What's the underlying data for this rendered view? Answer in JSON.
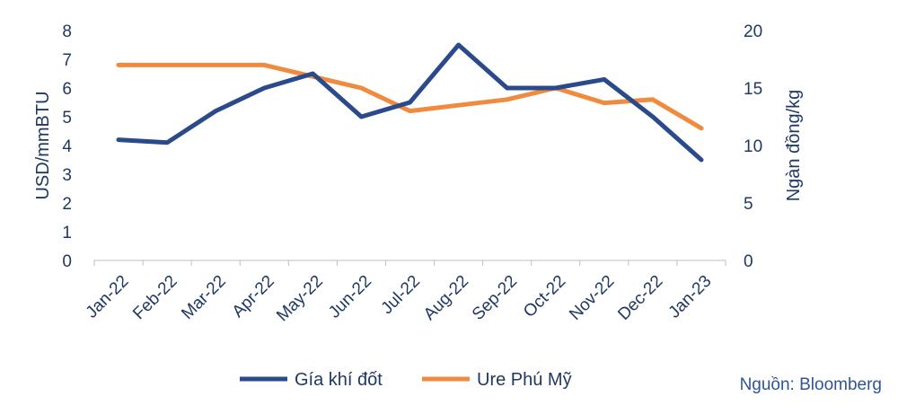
{
  "chart_data": {
    "type": "line",
    "categories": [
      "Jan-22",
      "Feb-22",
      "Mar-22",
      "Apr-22",
      "May-22",
      "Jun-22",
      "Jul-22",
      "Aug-22",
      "Sep-22",
      "Oct-22",
      "Nov-22",
      "Dec-22",
      "Jan-23"
    ],
    "series": [
      {
        "name": "Gía khí đốt",
        "axis": "left",
        "color": "#2a4a8c",
        "values": [
          4.2,
          4.1,
          5.2,
          6.0,
          6.5,
          5.0,
          5.5,
          7.5,
          6.0,
          6.0,
          6.3,
          5.0,
          3.5
        ]
      },
      {
        "name": "Ure Phú Mỹ",
        "axis": "right",
        "color": "#f08a3e",
        "values": [
          17,
          17,
          17,
          17,
          16,
          15,
          13,
          13.5,
          14,
          15,
          13.7,
          14,
          11.5
        ]
      }
    ],
    "ylabel": "USD/mmBTU",
    "ylabel_right": "Ngàn đồng/kg",
    "ylim": [
      0,
      8
    ],
    "ylim_right": [
      0,
      20
    ],
    "yticks": [
      "0",
      "1",
      "2",
      "3",
      "4",
      "5",
      "6",
      "7",
      "8"
    ],
    "yticks_right": [
      "0",
      "5",
      "10",
      "15",
      "20"
    ],
    "grid": false,
    "legend_position": "bottom"
  },
  "source": "Nguồn: Bloomberg"
}
